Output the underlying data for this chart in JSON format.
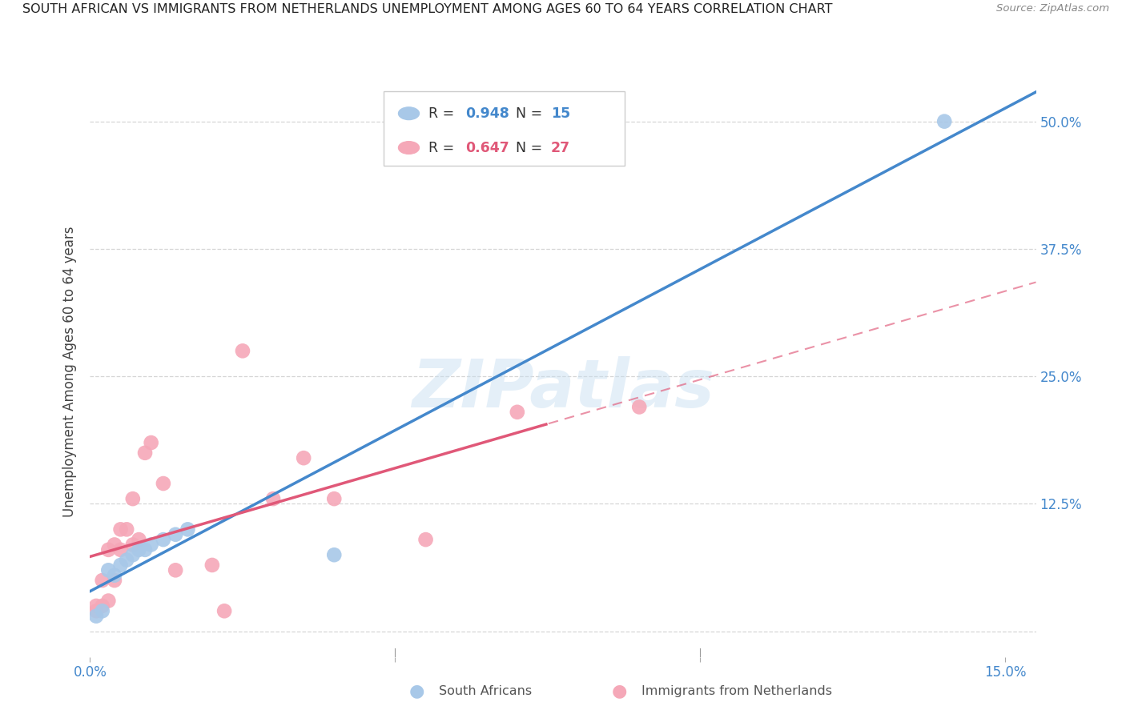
{
  "title": "SOUTH AFRICAN VS IMMIGRANTS FROM NETHERLANDS UNEMPLOYMENT AMONG AGES 60 TO 64 YEARS CORRELATION CHART",
  "source": "Source: ZipAtlas.com",
  "ylabel": "Unemployment Among Ages 60 to 64 years",
  "xlim": [
    0.0,
    0.155
  ],
  "ylim": [
    -0.025,
    0.535
  ],
  "right_yticks": [
    0.0,
    0.125,
    0.25,
    0.375,
    0.5
  ],
  "right_yticklabels": [
    "",
    "12.5%",
    "25.0%",
    "37.5%",
    "50.0%"
  ],
  "xticks": [
    0.0,
    0.05,
    0.1,
    0.15
  ],
  "xticklabels": [
    "0.0%",
    "",
    "",
    "15.0%"
  ],
  "blue_R": 0.948,
  "blue_N": 15,
  "pink_R": 0.647,
  "pink_N": 27,
  "blue_color": "#a8c8e8",
  "blue_line_color": "#4488cc",
  "pink_color": "#f5a8b8",
  "pink_line_color": "#e05878",
  "watermark": "ZIPatlas",
  "blue_scatter_x": [
    0.001,
    0.002,
    0.003,
    0.004,
    0.005,
    0.006,
    0.007,
    0.008,
    0.009,
    0.01,
    0.012,
    0.014,
    0.016,
    0.04,
    0.14
  ],
  "blue_scatter_y": [
    0.015,
    0.02,
    0.06,
    0.055,
    0.065,
    0.07,
    0.075,
    0.08,
    0.08,
    0.085,
    0.09,
    0.095,
    0.1,
    0.075,
    0.5
  ],
  "pink_scatter_x": [
    0.001,
    0.001,
    0.002,
    0.002,
    0.003,
    0.003,
    0.004,
    0.004,
    0.005,
    0.005,
    0.006,
    0.007,
    0.007,
    0.008,
    0.009,
    0.01,
    0.012,
    0.014,
    0.02,
    0.022,
    0.025,
    0.03,
    0.035,
    0.04,
    0.055,
    0.07,
    0.09
  ],
  "pink_scatter_y": [
    0.02,
    0.025,
    0.025,
    0.05,
    0.03,
    0.08,
    0.05,
    0.085,
    0.08,
    0.1,
    0.1,
    0.085,
    0.13,
    0.09,
    0.175,
    0.185,
    0.145,
    0.06,
    0.065,
    0.02,
    0.275,
    0.13,
    0.17,
    0.13,
    0.09,
    0.215,
    0.22
  ],
  "pink_solid_cutoff": 0.075,
  "grid_color": "#cccccc",
  "legend_color_blue": "#4488cc",
  "legend_color_pink": "#e05878"
}
